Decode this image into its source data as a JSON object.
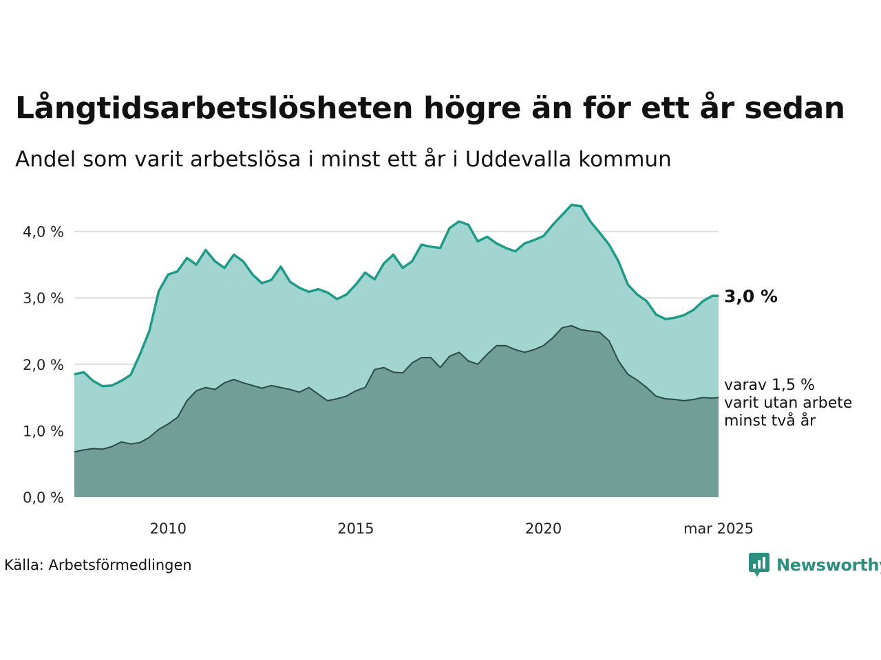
{
  "header": {
    "title": "Långtidsarbetslösheten högre än för ett år sedan",
    "subtitle": "Andel som varit arbetslösa i minst ett år i Uddevalla kommun"
  },
  "footer": {
    "source": "Källa: Arbetsförmedlingen",
    "brand": "Newsworthy"
  },
  "colors": {
    "line_main": "#1f9988",
    "area_main": "#a2d5cf",
    "line_sub": "#2c4a44",
    "area_sub": "#719e97",
    "grid": "#dcdcdc",
    "brand": "#2b8f80"
  },
  "chart_data": {
    "type": "area",
    "x_range": [
      "2008-01",
      "2025-03"
    ],
    "x_ticks": [
      "2010",
      "2015",
      "2020",
      "mar 2025"
    ],
    "y_ticks": [
      "0,0 %",
      "1,0 %",
      "2,0 %",
      "3,0 %",
      "4,0 %"
    ],
    "ylim": [
      0,
      4.5
    ],
    "grid": true,
    "end_label_main": "3,0 %",
    "end_label_sub": [
      "varav 1,5 %",
      "varit utan arbete",
      "minst två år"
    ],
    "series": [
      {
        "key": "main",
        "unit": "%",
        "points": [
          [
            "2008-01",
            1.85
          ],
          [
            "2008-04",
            1.88
          ],
          [
            "2008-07",
            1.75
          ],
          [
            "2008-10",
            1.67
          ],
          [
            "2009-01",
            1.68
          ],
          [
            "2009-04",
            1.75
          ],
          [
            "2009-07",
            1.84
          ],
          [
            "2009-10",
            2.15
          ],
          [
            "2010-01",
            2.5
          ],
          [
            "2010-04",
            3.1
          ],
          [
            "2010-07",
            3.35
          ],
          [
            "2010-10",
            3.4
          ],
          [
            "2011-01",
            3.6
          ],
          [
            "2011-04",
            3.5
          ],
          [
            "2011-07",
            3.72
          ],
          [
            "2011-10",
            3.55
          ],
          [
            "2012-01",
            3.45
          ],
          [
            "2012-04",
            3.65
          ],
          [
            "2012-07",
            3.55
          ],
          [
            "2012-10",
            3.35
          ],
          [
            "2013-01",
            3.22
          ],
          [
            "2013-04",
            3.27
          ],
          [
            "2013-07",
            3.47
          ],
          [
            "2013-10",
            3.24
          ],
          [
            "2014-01",
            3.15
          ],
          [
            "2014-04",
            3.09
          ],
          [
            "2014-07",
            3.13
          ],
          [
            "2014-10",
            3.08
          ],
          [
            "2015-01",
            2.98
          ],
          [
            "2015-04",
            3.05
          ],
          [
            "2015-07",
            3.2
          ],
          [
            "2015-10",
            3.38
          ],
          [
            "2016-01",
            3.28
          ],
          [
            "2016-04",
            3.52
          ],
          [
            "2016-07",
            3.65
          ],
          [
            "2016-10",
            3.45
          ],
          [
            "2017-01",
            3.55
          ],
          [
            "2017-04",
            3.8
          ],
          [
            "2017-07",
            3.77
          ],
          [
            "2017-10",
            3.75
          ],
          [
            "2018-01",
            4.05
          ],
          [
            "2018-04",
            4.15
          ],
          [
            "2018-07",
            4.1
          ],
          [
            "2018-10",
            3.85
          ],
          [
            "2019-01",
            3.92
          ],
          [
            "2019-04",
            3.82
          ],
          [
            "2019-07",
            3.75
          ],
          [
            "2019-10",
            3.7
          ],
          [
            "2020-01",
            3.82
          ],
          [
            "2020-04",
            3.87
          ],
          [
            "2020-07",
            3.93
          ],
          [
            "2020-10",
            4.1
          ],
          [
            "2021-01",
            4.25
          ],
          [
            "2021-04",
            4.4
          ],
          [
            "2021-07",
            4.38
          ],
          [
            "2021-10",
            4.15
          ],
          [
            "2022-01",
            3.98
          ],
          [
            "2022-04",
            3.8
          ],
          [
            "2022-07",
            3.55
          ],
          [
            "2022-10",
            3.2
          ],
          [
            "2023-01",
            3.05
          ],
          [
            "2023-04",
            2.95
          ],
          [
            "2023-07",
            2.75
          ],
          [
            "2023-10",
            2.68
          ],
          [
            "2024-01",
            2.7
          ],
          [
            "2024-04",
            2.74
          ],
          [
            "2024-07",
            2.82
          ],
          [
            "2024-10",
            2.95
          ],
          [
            "2025-01",
            3.03
          ],
          [
            "2025-03",
            3.03
          ]
        ]
      },
      {
        "key": "sub",
        "unit": "%",
        "points": [
          [
            "2008-01",
            0.68
          ],
          [
            "2008-04",
            0.71
          ],
          [
            "2008-07",
            0.73
          ],
          [
            "2008-10",
            0.72
          ],
          [
            "2009-01",
            0.76
          ],
          [
            "2009-04",
            0.83
          ],
          [
            "2009-07",
            0.8
          ],
          [
            "2009-10",
            0.82
          ],
          [
            "2010-01",
            0.9
          ],
          [
            "2010-04",
            1.02
          ],
          [
            "2010-07",
            1.1
          ],
          [
            "2010-10",
            1.2
          ],
          [
            "2011-01",
            1.45
          ],
          [
            "2011-04",
            1.6
          ],
          [
            "2011-07",
            1.65
          ],
          [
            "2011-10",
            1.62
          ],
          [
            "2012-01",
            1.72
          ],
          [
            "2012-04",
            1.77
          ],
          [
            "2012-07",
            1.72
          ],
          [
            "2012-10",
            1.68
          ],
          [
            "2013-01",
            1.64
          ],
          [
            "2013-04",
            1.68
          ],
          [
            "2013-07",
            1.65
          ],
          [
            "2013-10",
            1.62
          ],
          [
            "2014-01",
            1.58
          ],
          [
            "2014-04",
            1.65
          ],
          [
            "2014-07",
            1.55
          ],
          [
            "2014-10",
            1.45
          ],
          [
            "2015-01",
            1.48
          ],
          [
            "2015-04",
            1.52
          ],
          [
            "2015-07",
            1.6
          ],
          [
            "2015-10",
            1.65
          ],
          [
            "2016-01",
            1.92
          ],
          [
            "2016-04",
            1.95
          ],
          [
            "2016-07",
            1.88
          ],
          [
            "2016-10",
            1.87
          ],
          [
            "2017-01",
            2.02
          ],
          [
            "2017-04",
            2.1
          ],
          [
            "2017-07",
            2.1
          ],
          [
            "2017-10",
            1.95
          ],
          [
            "2018-01",
            2.12
          ],
          [
            "2018-04",
            2.18
          ],
          [
            "2018-07",
            2.05
          ],
          [
            "2018-10",
            2.0
          ],
          [
            "2019-01",
            2.15
          ],
          [
            "2019-04",
            2.28
          ],
          [
            "2019-07",
            2.28
          ],
          [
            "2019-10",
            2.22
          ],
          [
            "2020-01",
            2.18
          ],
          [
            "2020-04",
            2.22
          ],
          [
            "2020-07",
            2.28
          ],
          [
            "2020-10",
            2.4
          ],
          [
            "2021-01",
            2.55
          ],
          [
            "2021-04",
            2.58
          ],
          [
            "2021-07",
            2.52
          ],
          [
            "2021-10",
            2.5
          ],
          [
            "2022-01",
            2.48
          ],
          [
            "2022-04",
            2.35
          ],
          [
            "2022-07",
            2.05
          ],
          [
            "2022-10",
            1.85
          ],
          [
            "2023-01",
            1.76
          ],
          [
            "2023-04",
            1.65
          ],
          [
            "2023-07",
            1.52
          ],
          [
            "2023-10",
            1.48
          ],
          [
            "2024-01",
            1.47
          ],
          [
            "2024-04",
            1.45
          ],
          [
            "2024-07",
            1.47
          ],
          [
            "2024-10",
            1.5
          ],
          [
            "2025-01",
            1.49
          ],
          [
            "2025-03",
            1.5
          ]
        ]
      }
    ]
  }
}
